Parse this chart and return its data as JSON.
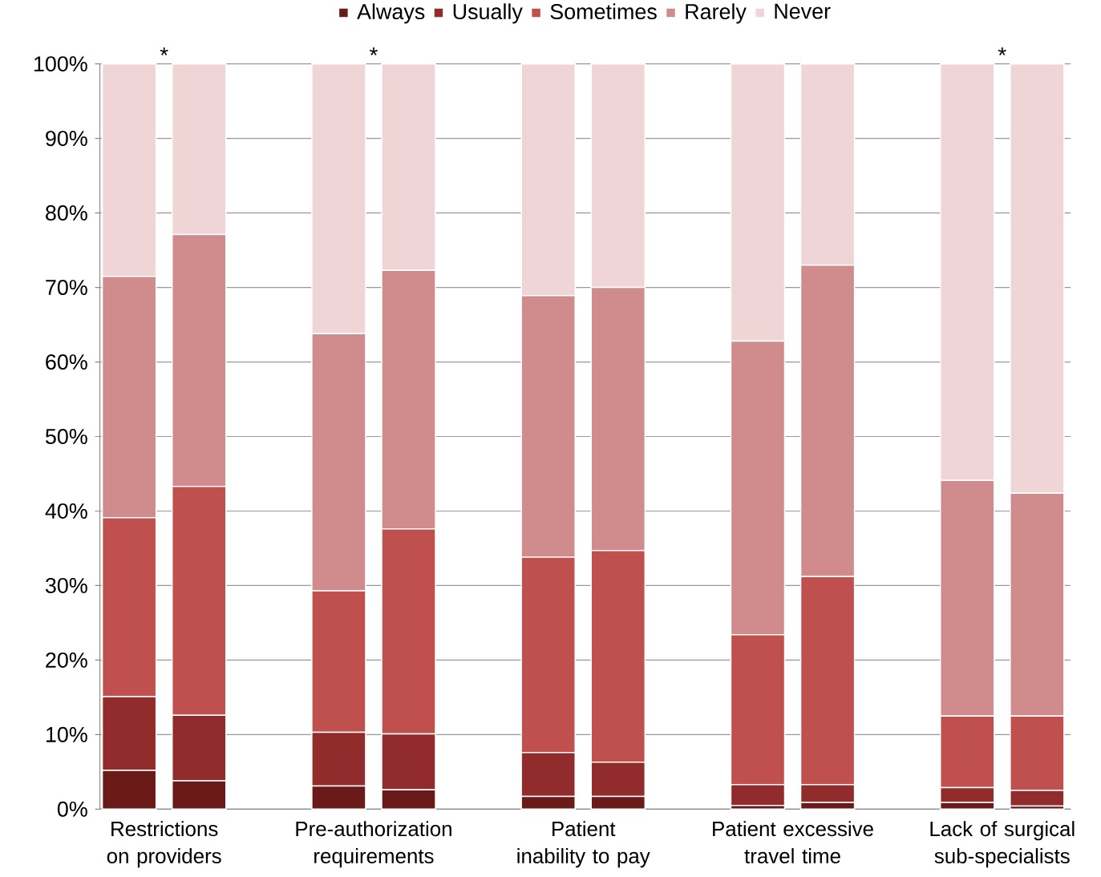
{
  "chart_data": {
    "type": "bar",
    "stacked": true,
    "categories": [
      "Restrictions on providers",
      null,
      null,
      "Pre-authorization requirements",
      null,
      null,
      "Patient inability to pay",
      null,
      null,
      "Patient excessive travel time",
      null,
      null,
      "Lack of surgical sub-specialists",
      null
    ],
    "ylim": [
      0,
      100
    ],
    "yticks": [
      {
        "value": 0,
        "label": "0%"
      },
      {
        "value": 10,
        "label": "10%"
      },
      {
        "value": 20,
        "label": "20%"
      },
      {
        "value": 30,
        "label": "30%"
      },
      {
        "value": 40,
        "label": "40%"
      },
      {
        "value": 50,
        "label": "50%"
      },
      {
        "value": 60,
        "label": "60%"
      },
      {
        "value": 70,
        "label": "70%"
      },
      {
        "value": 80,
        "label": "80%"
      },
      {
        "value": 90,
        "label": "90%"
      },
      {
        "value": 100,
        "label": "100%"
      }
    ],
    "series": [
      {
        "name": "Always",
        "color": "#6b1a1a",
        "values": [
          5.2,
          3.8,
          null,
          3.1,
          2.6,
          null,
          1.7,
          1.7,
          null,
          0.5,
          0.9,
          null,
          0.9,
          0.4
        ]
      },
      {
        "name": "Usually",
        "color": "#922b2b",
        "values": [
          9.9,
          8.8,
          null,
          7.2,
          7.5,
          null,
          5.9,
          4.6,
          null,
          2.8,
          2.4,
          null,
          2.0,
          2.1
        ]
      },
      {
        "name": "Sometimes",
        "color": "#c0504d",
        "values": [
          24.0,
          30.7,
          null,
          19.0,
          27.5,
          null,
          26.2,
          28.4,
          null,
          20.1,
          27.9,
          null,
          9.6,
          10.0
        ]
      },
      {
        "name": "Rarely",
        "color": "#d08c8c",
        "values": [
          32.4,
          33.8,
          null,
          34.5,
          34.7,
          null,
          35.1,
          35.3,
          null,
          39.4,
          41.8,
          null,
          31.6,
          29.9
        ]
      },
      {
        "name": "Never",
        "color": "#efd5d5",
        "values": [
          28.5,
          22.9,
          null,
          36.2,
          27.7,
          null,
          31.1,
          30.0,
          null,
          37.2,
          27.0,
          null,
          55.9,
          57.6
        ]
      }
    ],
    "annotations": [
      "*",
      "*",
      "*"
    ],
    "grid": "y",
    "legend": "top"
  }
}
